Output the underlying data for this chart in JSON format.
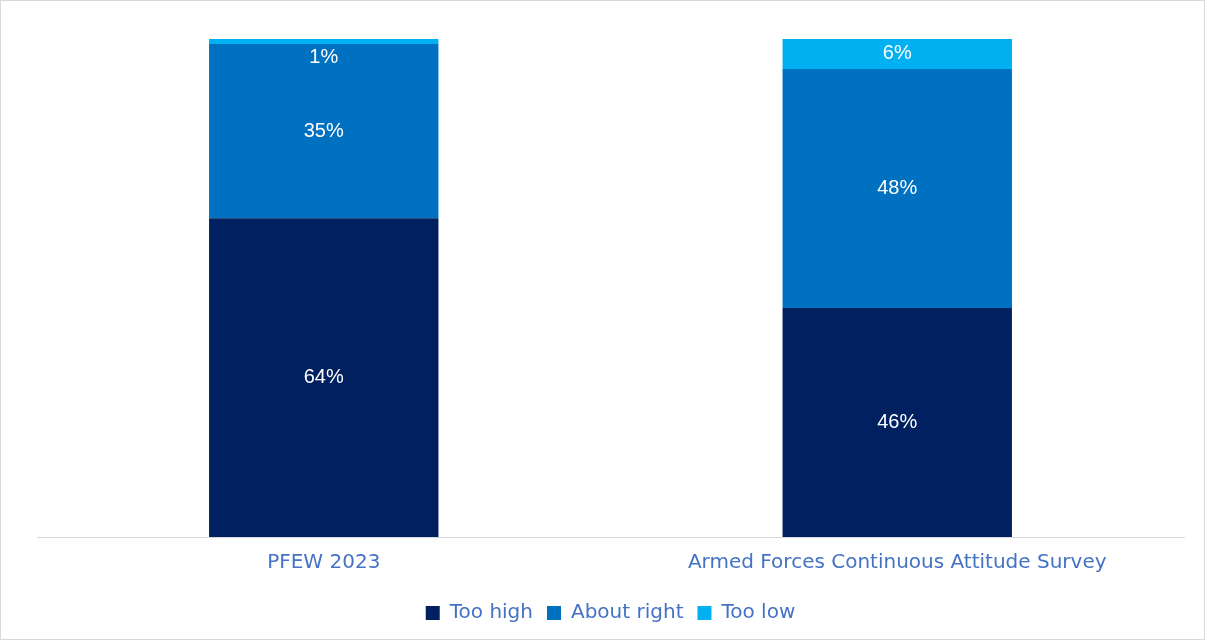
{
  "chart_data": {
    "type": "bar",
    "stacked": true,
    "categories": [
      "PFEW 2023",
      "Armed Forces Continuous Attitude Survey"
    ],
    "legend": "bottom",
    "grid": false,
    "series": [
      {
        "name": "Too high",
        "color": "#002060",
        "values": [
          64,
          46
        ],
        "value_labels": [
          "64%",
          "46%"
        ]
      },
      {
        "name": "About right",
        "color": "#0070c0",
        "values": [
          35,
          48
        ],
        "value_labels": [
          "35%",
          "48%"
        ]
      },
      {
        "name": "Too low",
        "color": "#00b0f0",
        "values": [
          1,
          6
        ],
        "value_labels": [
          "1%",
          "6%"
        ]
      }
    ]
  }
}
